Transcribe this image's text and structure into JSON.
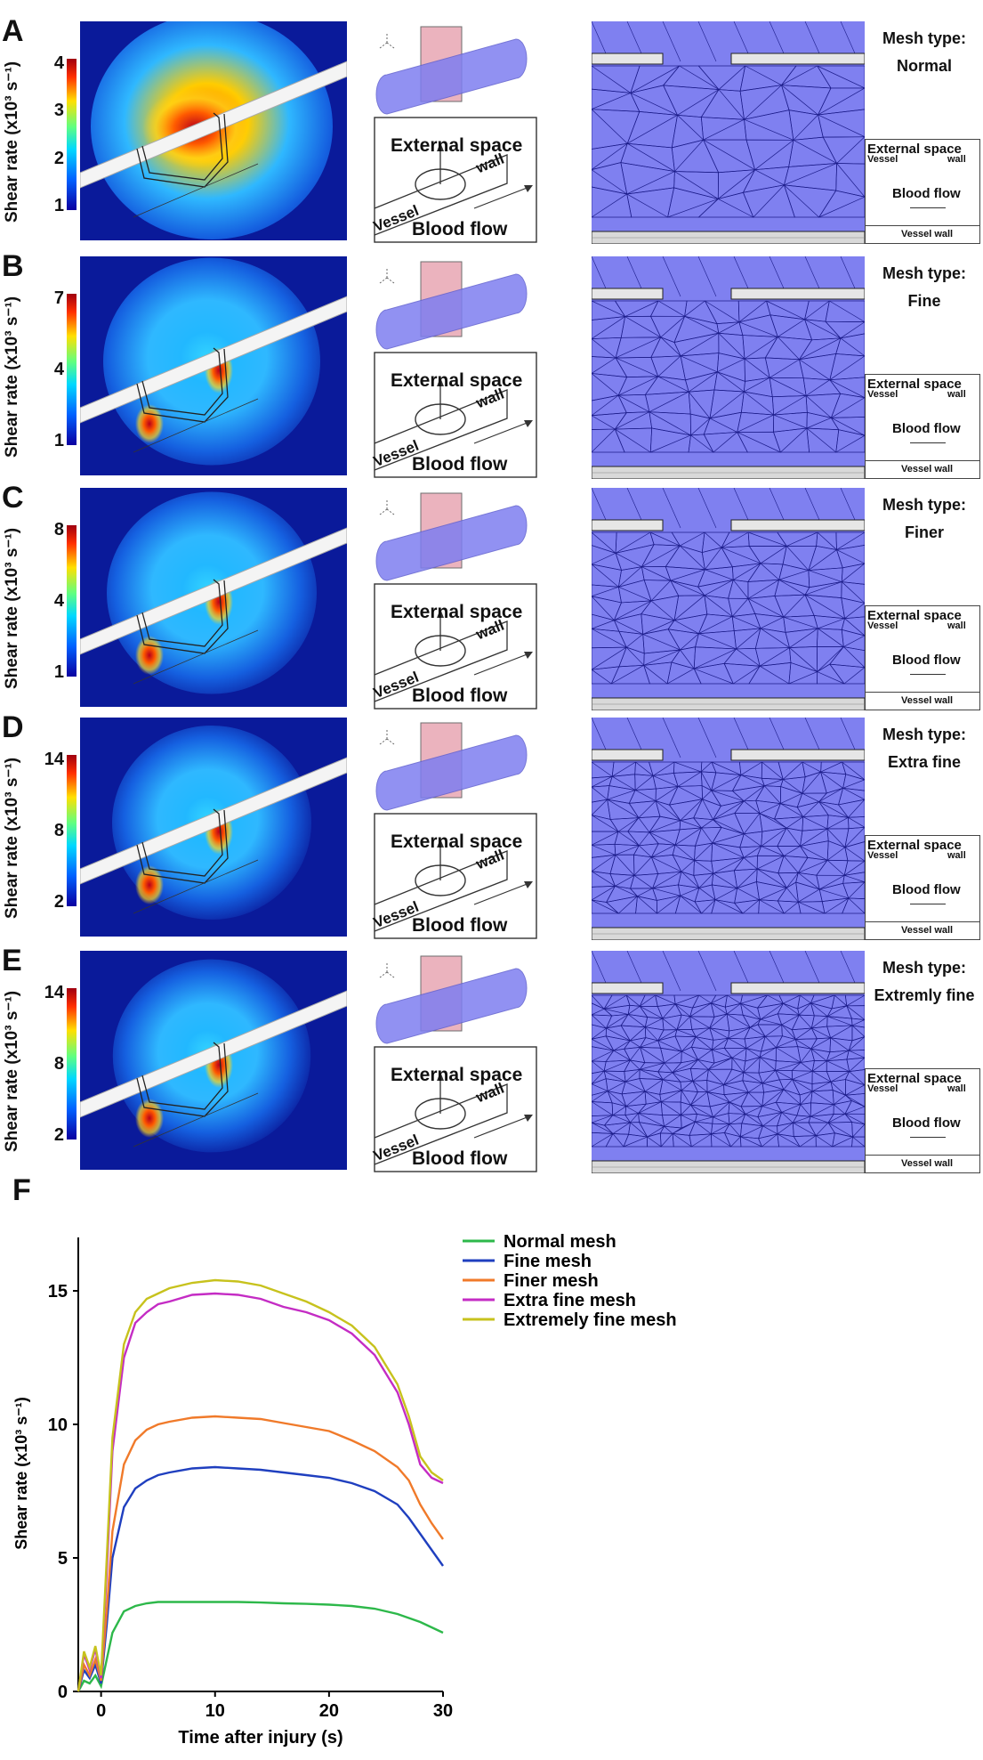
{
  "panels": [
    {
      "letter": "A",
      "mesh_type": "Normal",
      "cb_ticks": [
        "4",
        "3",
        "2",
        "1"
      ]
    },
    {
      "letter": "B",
      "mesh_type": "Fine",
      "cb_ticks": [
        "7",
        "4",
        "1"
      ]
    },
    {
      "letter": "C",
      "mesh_type": "Finer",
      "cb_ticks": [
        "8",
        "4",
        "1"
      ]
    },
    {
      "letter": "D",
      "mesh_type": "Extra fine",
      "cb_ticks": [
        "14",
        "8",
        "2"
      ]
    },
    {
      "letter": "E",
      "mesh_type": "Extremly fine",
      "cb_ticks": [
        "14",
        "8",
        "2"
      ]
    }
  ],
  "colorbar_title": "Shear rate (x10³ s⁻¹)",
  "mesh_type_prefix": "Mesh type:",
  "schematic": {
    "external_space": "External space",
    "vessel": "Vessel",
    "wall": "wall",
    "blood_flow": "Blood flow"
  },
  "mesh_inset": {
    "external_space": "External space",
    "vessel": "Vessel",
    "wall": "wall",
    "blood_flow": "Blood flow",
    "vessel_wall": "Vessel wall"
  },
  "chart_panel_letter": "F",
  "chart_data": {
    "type": "line",
    "xlabel": "Time after injury (s)",
    "ylabel": "Shear rate (x10³ s⁻¹)",
    "xlim": [
      -2,
      30
    ],
    "ylim": [
      0,
      17
    ],
    "xticks": [
      0,
      10,
      20,
      30
    ],
    "yticks": [
      0,
      5,
      10,
      15
    ],
    "legend_position": "top-right",
    "x": [
      -2,
      -1.5,
      -1,
      -0.5,
      0,
      0.5,
      1,
      2,
      3,
      4,
      5,
      6,
      8,
      10,
      12,
      14,
      16,
      18,
      20,
      22,
      24,
      26,
      27,
      28,
      29,
      30
    ],
    "series": [
      {
        "name": "Normal mesh",
        "color": "#2db84a",
        "values": [
          0,
          0.4,
          0.3,
          0.6,
          0.2,
          1.2,
          2.2,
          3.0,
          3.2,
          3.3,
          3.35,
          3.35,
          3.35,
          3.35,
          3.35,
          3.33,
          3.3,
          3.28,
          3.25,
          3.2,
          3.1,
          2.9,
          2.75,
          2.6,
          2.4,
          2.2
        ]
      },
      {
        "name": "Fine mesh",
        "color": "#1f3fbf",
        "values": [
          0,
          0.8,
          0.5,
          1.0,
          0.3,
          2.5,
          5.0,
          6.9,
          7.6,
          7.9,
          8.1,
          8.2,
          8.35,
          8.4,
          8.35,
          8.3,
          8.2,
          8.1,
          8.0,
          7.8,
          7.5,
          7.0,
          6.5,
          5.9,
          5.3,
          4.7
        ]
      },
      {
        "name": "Finer mesh",
        "color": "#f07a2a",
        "values": [
          0,
          1.0,
          0.6,
          1.2,
          0.4,
          3.0,
          6.0,
          8.5,
          9.4,
          9.8,
          10.0,
          10.1,
          10.25,
          10.3,
          10.25,
          10.2,
          10.05,
          9.9,
          9.75,
          9.4,
          9.0,
          8.4,
          7.9,
          7.0,
          6.3,
          5.7
        ]
      },
      {
        "name": "Extra fine mesh",
        "color": "#c42cc4",
        "values": [
          0,
          1.4,
          0.8,
          1.6,
          0.5,
          4.5,
          9.0,
          12.5,
          13.8,
          14.2,
          14.5,
          14.6,
          14.85,
          14.9,
          14.85,
          14.7,
          14.4,
          14.2,
          13.9,
          13.4,
          12.6,
          11.2,
          10.0,
          8.5,
          8.0,
          7.8
        ]
      },
      {
        "name": "Extremely fine mesh",
        "color": "#c7c21d",
        "values": [
          0,
          1.5,
          0.9,
          1.7,
          0.6,
          5.0,
          9.5,
          13.0,
          14.2,
          14.7,
          14.9,
          15.1,
          15.3,
          15.4,
          15.35,
          15.2,
          14.9,
          14.6,
          14.2,
          13.7,
          12.9,
          11.5,
          10.3,
          8.8,
          8.2,
          7.9
        ]
      }
    ]
  }
}
